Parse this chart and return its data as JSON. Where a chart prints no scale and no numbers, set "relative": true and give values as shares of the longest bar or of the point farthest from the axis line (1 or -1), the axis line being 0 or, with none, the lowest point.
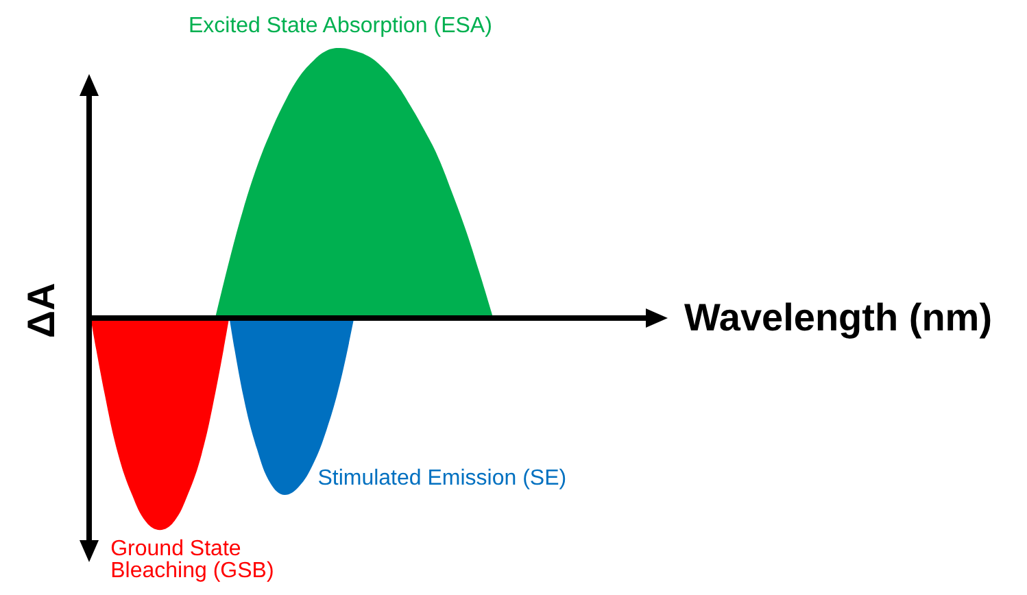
{
  "chart_data": {
    "type": "area",
    "relative": true,
    "xlabel": "Wavelength (nm)",
    "ylabel": "ΔA",
    "grid": false,
    "legend": false,
    "categories": [
      null,
      null,
      null,
      null,
      null,
      null,
      null,
      null,
      null,
      null,
      null,
      null,
      null,
      null,
      null,
      null,
      null,
      null,
      null,
      null,
      null,
      null,
      null,
      null,
      null,
      null,
      null,
      null,
      null,
      null,
      null,
      null,
      null,
      null,
      null,
      null,
      null,
      null,
      null,
      null,
      null,
      null
    ],
    "series": [
      {
        "name": "Ground State Bleaching (GSB)",
        "color": "#ff0000",
        "values": [
          0,
          -0.28,
          -0.51,
          -0.66,
          -0.76,
          -0.79,
          -0.76,
          -0.66,
          -0.51,
          -0.28,
          0,
          null,
          null,
          null,
          null,
          null,
          null,
          null,
          null,
          null,
          null,
          null,
          null,
          null,
          null,
          null,
          null,
          null,
          null,
          null,
          null,
          null,
          null,
          null,
          null,
          null,
          null,
          null,
          null,
          null,
          null,
          null
        ]
      },
      {
        "name": "Stimulated Emission (SE)",
        "color": "#0070c0",
        "values": [
          null,
          null,
          null,
          null,
          null,
          null,
          null,
          null,
          null,
          null,
          0,
          -0.29,
          -0.49,
          -0.62,
          -0.66,
          -0.63,
          -0.55,
          -0.42,
          -0.24,
          0,
          null,
          null,
          null,
          null,
          null,
          null,
          null,
          null,
          null,
          null,
          null,
          null,
          null,
          null,
          null,
          null,
          null,
          null,
          null,
          null,
          null,
          null
        ]
      },
      {
        "name": "Excited State Absorption (ESA)",
        "color": "#00b050",
        "values": [
          null,
          null,
          null,
          null,
          null,
          null,
          null,
          null,
          null,
          0,
          0.21,
          0.4,
          0.56,
          0.69,
          0.8,
          0.89,
          0.95,
          0.99,
          1,
          0.99,
          0.97,
          0.93,
          0.87,
          0.79,
          0.7,
          0.6,
          0.47,
          0.33,
          0.17,
          0,
          null,
          null,
          null,
          null,
          null,
          null,
          null,
          null,
          null,
          null,
          null,
          null
        ]
      }
    ]
  }
}
